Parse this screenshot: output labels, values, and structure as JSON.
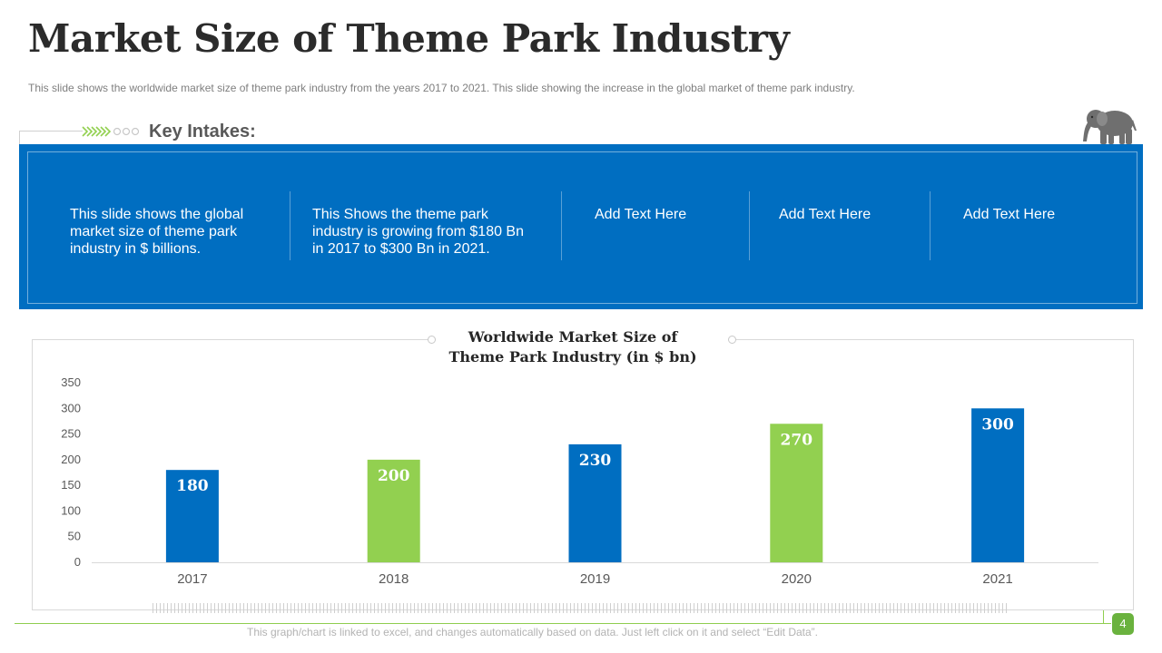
{
  "slide": {
    "title": "Market Size of Theme Park Industry",
    "subtitle": "This slide shows the worldwide  market size of theme park industry from  the years 2017 to 2021. This slide showing the increase in the global market of theme park industry."
  },
  "key_intakes": {
    "label": "Key Intakes:",
    "items": [
      "This slide shows the global market size of theme park industry  in $ billions.",
      "This Shows the theme park industry  is growing from $180 Bn in 2017 to $300 Bn in 2021.",
      "Add Text Here",
      "Add Text Here",
      "Add Text Here"
    ]
  },
  "chart_data": {
    "type": "bar",
    "title_lines": [
      "Worldwide Market Size of",
      "Theme Park Industry (in $ bn)"
    ],
    "categories": [
      "2017",
      "2018",
      "2019",
      "2020",
      "2021"
    ],
    "series": [
      {
        "values": [
          180,
          200,
          230,
          270,
          300
        ]
      }
    ],
    "bar_colors": [
      "#006ec1",
      "#92d050",
      "#006ec1",
      "#92d050",
      "#006ec1"
    ],
    "data_labels": [
      "180",
      "200",
      "230",
      "270",
      "300"
    ],
    "ylim": [
      0,
      350
    ],
    "yticks": [
      0,
      50,
      100,
      150,
      200,
      250,
      300,
      350
    ],
    "grid": false
  },
  "footer": {
    "note": "This graph/chart is linked to excel,  and changes automatically based on data. Just left click on it and select “Edit Data”.",
    "page_number": "4"
  },
  "colors": {
    "accent_blue": "#006ec1",
    "accent_green": "#92d050",
    "page_badge": "#6ab23e"
  },
  "icons": [
    "chevron-arrows-icon",
    "elephant-icon"
  ]
}
